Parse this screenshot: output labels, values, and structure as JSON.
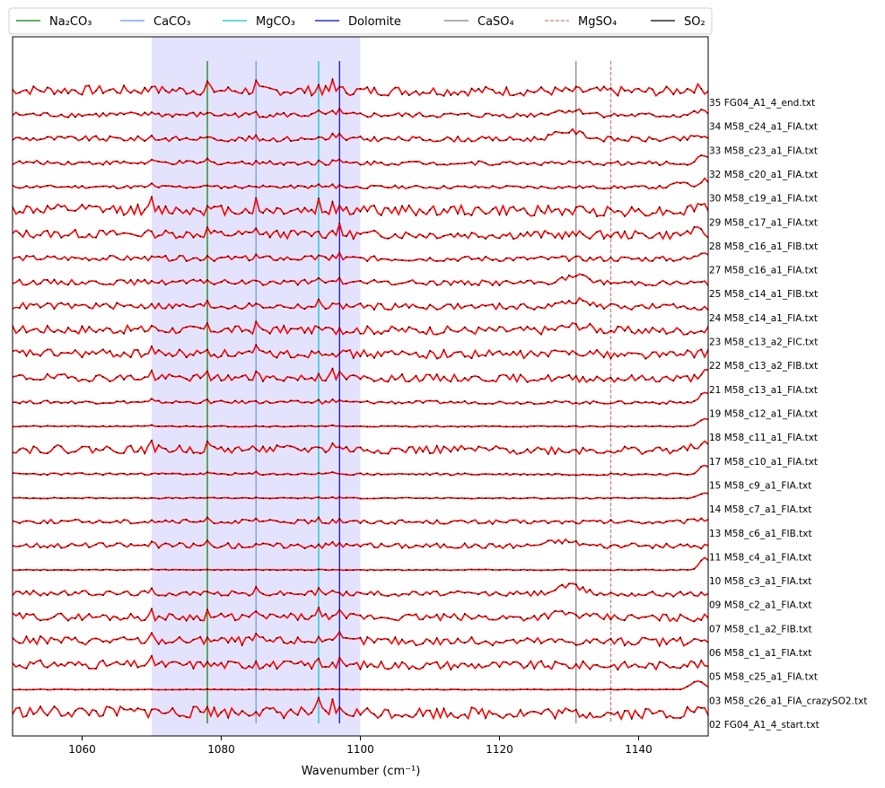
{
  "chart_data": {
    "type": "line",
    "title": "",
    "xlabel": "Wavenumber (cm⁻¹)",
    "ylabel": "",
    "xlim": [
      1050,
      1150
    ],
    "xticks": [
      1060,
      1080,
      1100,
      1120,
      1140
    ],
    "grid": false,
    "legend_placement": "top",
    "shaded_region": {
      "x_start": 1070,
      "x_end": 1100,
      "color": "#e3e3fd"
    },
    "reference_lines": [
      {
        "name": "Na₂CO₃",
        "x": 1078,
        "color": "#008000",
        "style": "solid"
      },
      {
        "name": "CaCO₃",
        "x": 1085,
        "color": "#6495ed",
        "style": "solid"
      },
      {
        "name": "MgCO₃",
        "x": 1094,
        "color": "#00c5cd",
        "style": "solid"
      },
      {
        "name": "Dolomite",
        "x": 1097,
        "color": "#0000cd",
        "style": "solid"
      },
      {
        "name": "CaSO₄",
        "x": 1131,
        "color": "#808080",
        "style": "solid"
      },
      {
        "name": "MgSO₄",
        "x": 1136,
        "color": "#c08080",
        "style": "dashed"
      },
      {
        "name": "SO₂",
        "x": null,
        "color": "#000000",
        "style": "solid"
      }
    ],
    "series_color": "#ff0000",
    "marker_color": "#000000",
    "series": [
      {
        "name": "35 FG04_A1_4_end.txt",
        "noise": 0.9,
        "features": [
          [
            1148,
            0.6,
            1.5
          ]
        ]
      },
      {
        "name": "34 M58_c24_a1_FIA.txt",
        "noise": 0.5,
        "features": [
          [
            1130,
            0.9,
            2.5
          ],
          [
            1149,
            0.7,
            1.2
          ]
        ]
      },
      {
        "name": "33 M58_c23_a1_FIA.txt",
        "noise": 0.5,
        "features": [
          [
            1130,
            1.5,
            2.0
          ],
          [
            1149,
            0.6,
            1.2
          ]
        ]
      },
      {
        "name": "32 M58_c20_a1_FIA.txt",
        "noise": 0.4,
        "features": [
          [
            1149.5,
            1.6,
            0.8
          ]
        ]
      },
      {
        "name": "30 M58_c19_a1_FIA.txt",
        "noise": 0.3,
        "features": [
          [
            1146,
            0.9,
            0.9
          ],
          [
            1149.5,
            1.4,
            0.7
          ]
        ]
      },
      {
        "name": "29 M58_c17_a1_FIA.txt",
        "noise": 1.0,
        "features": [
          [
            1149,
            1.2,
            1.0
          ]
        ]
      },
      {
        "name": "28 M58_c16_a1_FIB.txt",
        "noise": 0.8,
        "features": [
          [
            1148,
            0.8,
            1.0
          ]
        ]
      },
      {
        "name": "27 M58_c16_a1_FIA.txt",
        "noise": 0.5,
        "features": [
          [
            1149.5,
            1.5,
            0.8
          ]
        ]
      },
      {
        "name": "25 M58_c14_a1_FIB.txt",
        "noise": 0.5,
        "features": [
          [
            1131,
            1.2,
            1.8
          ]
        ]
      },
      {
        "name": "24 M58_c14_a1_FIA.txt",
        "noise": 0.6,
        "features": [
          [
            1131,
            1.1,
            1.8
          ]
        ]
      },
      {
        "name": "23 M58_c13_a2_FIC.txt",
        "noise": 0.8,
        "features": [
          [
            1131,
            0.9,
            2.0
          ]
        ]
      },
      {
        "name": "22 M58_c13_a2_FIB.txt",
        "noise": 0.8,
        "features": [
          [
            1131,
            0.6,
            1.8
          ],
          [
            1149,
            0.4,
            1.0
          ]
        ]
      },
      {
        "name": "21 M58_c13_a1_FIA.txt",
        "noise": 0.7,
        "features": [
          [
            1149.5,
            1.3,
            0.8
          ]
        ]
      },
      {
        "name": "19 M58_c12_a1_FIA.txt",
        "noise": 0.3,
        "features": [
          [
            1149.5,
            1.9,
            0.7
          ]
        ]
      },
      {
        "name": "18 M58_c11_a1_FIA.txt",
        "noise": 0.1,
        "features": [
          [
            1149.5,
            1.5,
            0.8
          ]
        ]
      },
      {
        "name": "17 M58_c10_a1_FIA.txt",
        "noise": 0.8,
        "features": [
          [
            1149,
            1.2,
            1.0
          ]
        ]
      },
      {
        "name": "15 M58_c9_a1_FIA.txt",
        "noise": 0.2,
        "features": [
          [
            1149.5,
            1.6,
            0.8
          ]
        ]
      },
      {
        "name": "14 M58_c7_a1_FIA.txt",
        "noise": 0.1,
        "features": [
          [
            1149.5,
            1.0,
            0.8
          ]
        ]
      },
      {
        "name": "13 M58_c6_a1_FIB.txt",
        "noise": 0.4,
        "features": [
          [
            1149,
            0.6,
            1.0
          ]
        ]
      },
      {
        "name": "11 M58_c4_a1_FIA.txt",
        "noise": 0.5,
        "features": [
          [
            1129,
            0.9,
            2.2
          ]
        ]
      },
      {
        "name": "10 M58_c3_a1_FIA.txt",
        "noise": 0.08,
        "features": [
          [
            1149.5,
            2.3,
            0.7
          ]
        ]
      },
      {
        "name": "09 M58_c2_a1_FIA.txt",
        "noise": 0.5,
        "features": [
          [
            1130,
            1.5,
            1.8
          ]
        ]
      },
      {
        "name": "07 M58_c1_a2_FIB.txt",
        "noise": 0.7,
        "features": [
          [
            1129,
            0.8,
            2.0
          ]
        ]
      },
      {
        "name": "06 M58_c1_a1_FIA.txt",
        "noise": 0.8,
        "features": []
      },
      {
        "name": "05 M58_c25_a1_FIA.txt",
        "noise": 0.8,
        "features": [
          [
            1147,
            0.4,
            1.5
          ]
        ]
      },
      {
        "name": "03 M58_c26_a1_FIA_crazySO2.txt",
        "noise": 0.05,
        "features": [
          [
            1148.5,
            1.6,
            1.0
          ]
        ]
      },
      {
        "name": "02 FG04_A1_4_start.txt",
        "noise": 1.1,
        "features": [
          [
            1148,
            0.7,
            1.0
          ]
        ]
      }
    ]
  }
}
